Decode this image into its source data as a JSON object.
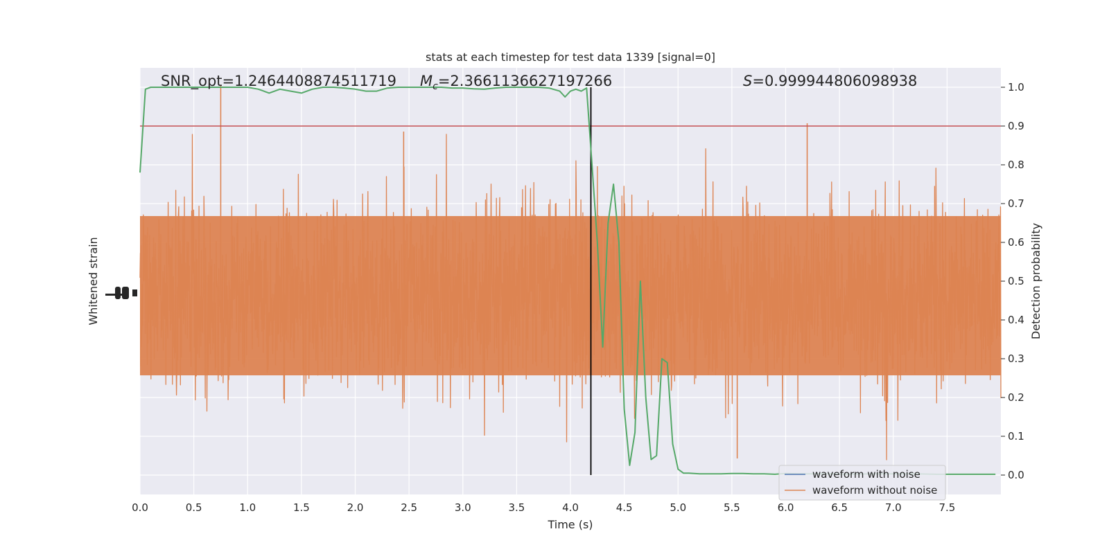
{
  "chart_data": {
    "type": "line",
    "title": "stats at each timestep for test data 1339 [signal=0]",
    "xlabel": "Time (s)",
    "ylabel_left": "Whitened strain",
    "ylabel_right": "Detection probability",
    "xlim": [
      0.0,
      8.0
    ],
    "ylim_right": [
      -0.05,
      1.05
    ],
    "x_ticks": [
      "0.0",
      "0.5",
      "1.0",
      "1.5",
      "2.0",
      "2.5",
      "3.0",
      "3.5",
      "4.0",
      "4.5",
      "5.0",
      "5.5",
      "6.0",
      "6.5",
      "7.0",
      "7.5"
    ],
    "x_tick_values": [
      0.0,
      0.5,
      1.0,
      1.5,
      2.0,
      2.5,
      3.0,
      3.5,
      4.0,
      4.5,
      5.0,
      5.5,
      6.0,
      6.5,
      7.0,
      7.5
    ],
    "y_right_ticks": [
      "0.0",
      "0.1",
      "0.2",
      "0.3",
      "0.4",
      "0.5",
      "0.6",
      "0.7",
      "0.8",
      "0.9",
      "1.0"
    ],
    "y_right_tick_values": [
      0.0,
      0.1,
      0.2,
      0.3,
      0.4,
      0.5,
      0.6,
      0.7,
      0.8,
      0.9,
      1.0
    ],
    "grid": true,
    "legend_placement": "lower-right",
    "annotations": {
      "snr": "SNR_opt=1.2464408874511719",
      "mc_symbol": "M",
      "mc_sub": "c",
      "mc_value": "=2.3661136627197266",
      "s_symbol": "S",
      "s_value": "=0.999944806098938"
    },
    "threshold": 0.9,
    "vline_x": 4.19,
    "series": [
      {
        "name": "waveform with noise",
        "color": "#4c72b0",
        "style": "noise",
        "values": []
      },
      {
        "name": "waveform without noise",
        "color": "#dd8452",
        "style": "noise"
      },
      {
        "color": "#55a868",
        "x": [
          0.0,
          0.05,
          0.1,
          0.15,
          0.2,
          0.3,
          0.4,
          0.5,
          0.6,
          0.7,
          0.8,
          0.9,
          1.0,
          1.1,
          1.2,
          1.3,
          1.4,
          1.5,
          1.6,
          1.7,
          1.8,
          1.9,
          2.0,
          2.1,
          2.2,
          2.3,
          2.4,
          2.5,
          2.6,
          2.7,
          2.8,
          2.9,
          3.0,
          3.1,
          3.2,
          3.3,
          3.4,
          3.5,
          3.6,
          3.7,
          3.8,
          3.9,
          3.95,
          4.0,
          4.05,
          4.1,
          4.15,
          4.2,
          4.25,
          4.3,
          4.35,
          4.4,
          4.45,
          4.5,
          4.55,
          4.6,
          4.65,
          4.7,
          4.75,
          4.8,
          4.85,
          4.9,
          4.95,
          5.0,
          5.05,
          5.1,
          5.15,
          5.2,
          5.3,
          5.4,
          5.5,
          5.6,
          5.7,
          5.8,
          5.9,
          6.0,
          6.2,
          6.4,
          6.6,
          6.8,
          7.0,
          7.2,
          7.4,
          7.6,
          7.8,
          7.95
        ],
        "values": [
          0.78,
          0.995,
          1.0,
          1.0,
          1.0,
          1.0,
          1.0,
          1.0,
          1.0,
          1.0,
          1.0,
          1.0,
          1.0,
          0.995,
          0.985,
          0.995,
          0.99,
          0.985,
          0.995,
          1.0,
          1.0,
          0.998,
          0.995,
          0.99,
          0.99,
          0.998,
          1.0,
          1.0,
          1.0,
          1.0,
          1.0,
          0.998,
          0.998,
          0.996,
          0.995,
          0.998,
          1.0,
          1.0,
          1.0,
          1.0,
          0.998,
          0.99,
          0.975,
          0.99,
          0.995,
          0.99,
          0.998,
          0.8,
          0.6,
          0.33,
          0.65,
          0.75,
          0.6,
          0.17,
          0.025,
          0.11,
          0.5,
          0.2,
          0.04,
          0.05,
          0.3,
          0.29,
          0.08,
          0.015,
          0.005,
          0.005,
          0.004,
          0.003,
          0.003,
          0.003,
          0.004,
          0.004,
          0.003,
          0.003,
          0.002,
          0.004,
          0.003,
          0.003,
          0.002,
          0.003,
          0.003,
          0.003,
          0.002,
          0.002,
          0.002,
          0.002
        ]
      }
    ]
  }
}
